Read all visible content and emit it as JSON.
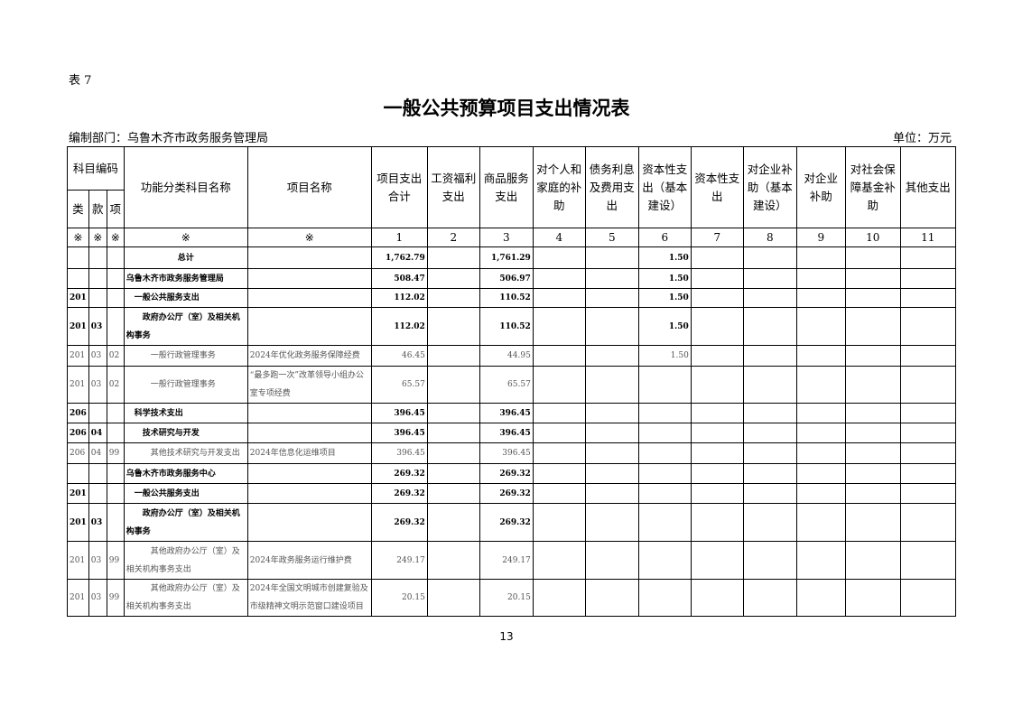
{
  "table_no": "表 7",
  "title": "一般公共预算项目支出情况表",
  "dept": "编制部门：乌鲁木齐市政务服务管理局",
  "unit": "单位：万元",
  "headers": {
    "code": "科目编码",
    "lei": "类",
    "kuan": "款",
    "xiang": "项",
    "func": "功能分类科目名称",
    "proj": "项目名称",
    "cols": [
      "项目支出合计",
      "工资福利支出",
      "商品服务支出",
      "对个人和家庭的补助",
      "债务利息及费用支出",
      "资本性支出（基本建设）",
      "资本性支出",
      "对企业补助（基本建设）",
      "对企业补助",
      "对社会保障基金补助",
      "其他支出"
    ]
  },
  "index_row": [
    "※",
    "※",
    "※",
    "※",
    "※",
    "1",
    "2",
    "3",
    "4",
    "5",
    "6",
    "7",
    "8",
    "9",
    "10",
    "11"
  ],
  "rows": [
    {
      "s": "b",
      "c": [
        "",
        "",
        "",
        "总计",
        "",
        "1,762.79",
        "",
        "1,761.29",
        "",
        "",
        "1.50",
        "",
        "",
        "",
        "",
        ""
      ]
    },
    {
      "s": "b",
      "c": [
        "",
        "",
        "",
        "乌鲁木齐市政务服务管理局",
        "",
        "508.47",
        "",
        "506.97",
        "",
        "",
        "1.50",
        "",
        "",
        "",
        "",
        ""
      ]
    },
    {
      "s": "b",
      "c": [
        "201",
        "",
        "",
        "　一般公共服务支出",
        "",
        "112.02",
        "",
        "110.52",
        "",
        "",
        "1.50",
        "",
        "",
        "",
        "",
        ""
      ]
    },
    {
      "s": "b",
      "c": [
        "201",
        "03",
        "",
        "　　政府办公厅（室）及相关机构事务",
        "",
        "112.02",
        "",
        "110.52",
        "",
        "",
        "1.50",
        "",
        "",
        "",
        "",
        ""
      ]
    },
    {
      "s": "n",
      "c": [
        "201",
        "03",
        "02",
        "　　　一般行政管理事务",
        "2024年优化政务服务保障经费",
        "46.45",
        "",
        "44.95",
        "",
        "",
        "1.50",
        "",
        "",
        "",
        "",
        ""
      ]
    },
    {
      "s": "n",
      "c": [
        "201",
        "03",
        "02",
        "　　　一般行政管理事务",
        "“最多跑一次”改革领导小组办公室专项经费",
        "65.57",
        "",
        "65.57",
        "",
        "",
        "",
        "",
        "",
        "",
        "",
        ""
      ]
    },
    {
      "s": "b",
      "c": [
        "206",
        "",
        "",
        "　科学技术支出",
        "",
        "396.45",
        "",
        "396.45",
        "",
        "",
        "",
        "",
        "",
        "",
        "",
        ""
      ]
    },
    {
      "s": "b",
      "c": [
        "206",
        "04",
        "",
        "　　技术研究与开发",
        "",
        "396.45",
        "",
        "396.45",
        "",
        "",
        "",
        "",
        "",
        "",
        "",
        ""
      ]
    },
    {
      "s": "n",
      "c": [
        "206",
        "04",
        "99",
        "　　　其他技术研究与开发支出",
        "2024年信息化运维项目",
        "396.45",
        "",
        "396.45",
        "",
        "",
        "",
        "",
        "",
        "",
        "",
        ""
      ]
    },
    {
      "s": "b",
      "c": [
        "",
        "",
        "",
        "乌鲁木齐市政务服务中心",
        "",
        "269.32",
        "",
        "269.32",
        "",
        "",
        "",
        "",
        "",
        "",
        "",
        ""
      ]
    },
    {
      "s": "b",
      "c": [
        "201",
        "",
        "",
        "　一般公共服务支出",
        "",
        "269.32",
        "",
        "269.32",
        "",
        "",
        "",
        "",
        "",
        "",
        "",
        ""
      ]
    },
    {
      "s": "b",
      "c": [
        "201",
        "03",
        "",
        "　　政府办公厅（室）及相关机构事务",
        "",
        "269.32",
        "",
        "269.32",
        "",
        "",
        "",
        "",
        "",
        "",
        "",
        ""
      ]
    },
    {
      "s": "n",
      "c": [
        "201",
        "03",
        "99",
        "　　　其他政府办公厅（室）及相关机构事务支出",
        "2024年政务服务运行维护费",
        "249.17",
        "",
        "249.17",
        "",
        "",
        "",
        "",
        "",
        "",
        "",
        ""
      ]
    },
    {
      "s": "n",
      "c": [
        "201",
        "03",
        "99",
        "　　　其他政府办公厅（室）及相关机构事务支出",
        "2024年全国文明城市创建复验及市级精神文明示范窗口建设项目",
        "20.15",
        "",
        "20.15",
        "",
        "",
        "",
        "",
        "",
        "",
        "",
        ""
      ]
    }
  ],
  "page_number": "13"
}
